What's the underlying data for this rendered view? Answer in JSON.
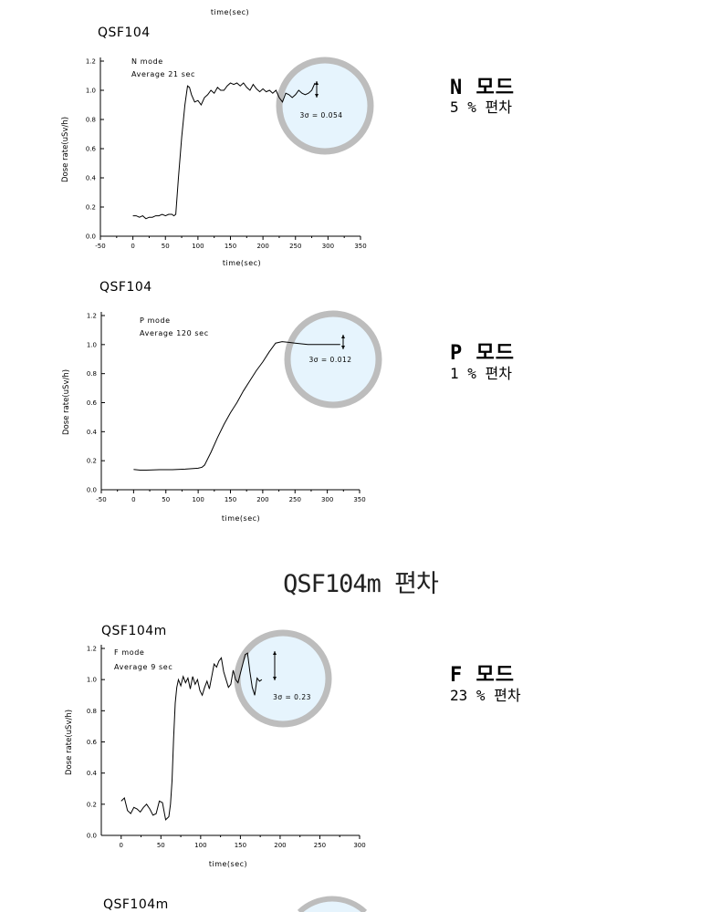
{
  "header_fragment": "time(sec)",
  "section_title": "QSF104m 편차",
  "side_labels": [
    {
      "mode": "N 모드",
      "deviation": "5 % 편차"
    },
    {
      "mode": "P 모드",
      "deviation": "1 % 편차"
    },
    {
      "mode": "F 모드",
      "deviation": "23 % 편차"
    }
  ],
  "chart_data": [
    {
      "type": "line",
      "title": "QSF104",
      "xlabel": "time(sec)",
      "ylabel": "Dose rate(uSv/h)",
      "xlim": [
        -50,
        350
      ],
      "ylim": [
        0.0,
        1.2
      ],
      "xticks": [
        -50,
        0,
        50,
        100,
        150,
        200,
        250,
        300,
        350
      ],
      "yticks": [
        0.0,
        0.2,
        0.4,
        0.6,
        0.8,
        1.0,
        1.2
      ],
      "annotation_lines": [
        "N mode",
        "Average 21 sec"
      ],
      "sigma_label": "3σ = 0.054",
      "x": [
        0,
        5,
        10,
        15,
        20,
        25,
        30,
        35,
        40,
        45,
        50,
        55,
        60,
        63,
        66,
        70,
        75,
        80,
        84,
        87,
        90,
        95,
        100,
        105,
        110,
        115,
        120,
        125,
        130,
        135,
        140,
        145,
        150,
        155,
        160,
        165,
        170,
        175,
        180,
        185,
        190,
        195,
        200,
        205,
        210,
        215,
        220,
        225,
        230,
        235,
        240,
        245,
        250,
        255,
        260,
        265,
        270,
        275,
        280
      ],
      "values": [
        0.14,
        0.14,
        0.13,
        0.14,
        0.12,
        0.13,
        0.13,
        0.14,
        0.14,
        0.15,
        0.14,
        0.15,
        0.15,
        0.14,
        0.15,
        0.4,
        0.68,
        0.9,
        1.03,
        1.02,
        0.97,
        0.92,
        0.93,
        0.9,
        0.95,
        0.97,
        1.0,
        0.98,
        1.02,
        1.0,
        1.0,
        1.03,
        1.05,
        1.04,
        1.05,
        1.03,
        1.05,
        1.02,
        1.0,
        1.04,
        1.01,
        0.99,
        1.01,
        0.99,
        1.0,
        0.98,
        1.0,
        0.95,
        0.92,
        0.98,
        0.97,
        0.95,
        0.97,
        1.0,
        0.98,
        0.97,
        0.98,
        1.0,
        1.05
      ]
    },
    {
      "type": "line",
      "title": "QSF104",
      "xlabel": "time(sec)",
      "ylabel": "Dose rate(uSv/h)",
      "xlim": [
        -50,
        350
      ],
      "ylim": [
        0.0,
        1.2
      ],
      "xticks": [
        -50,
        0,
        50,
        100,
        150,
        200,
        250,
        300,
        350
      ],
      "yticks": [
        0.0,
        0.2,
        0.4,
        0.6,
        0.8,
        1.0,
        1.2
      ],
      "annotation_lines": [
        "P mode",
        "Average 120 sec"
      ],
      "sigma_label": "3σ = 0.012",
      "x": [
        0,
        10,
        20,
        40,
        60,
        80,
        100,
        106,
        110,
        120,
        130,
        140,
        150,
        160,
        170,
        180,
        190,
        200,
        210,
        220,
        230,
        240,
        250,
        260,
        270,
        280,
        290,
        300,
        310,
        320
      ],
      "values": [
        0.14,
        0.135,
        0.135,
        0.138,
        0.138,
        0.142,
        0.148,
        0.155,
        0.17,
        0.26,
        0.36,
        0.45,
        0.53,
        0.6,
        0.68,
        0.75,
        0.82,
        0.88,
        0.95,
        1.01,
        1.02,
        1.015,
        1.01,
        1.005,
        1.0,
        1.0,
        1.0,
        1.0,
        1.0,
        1.0
      ]
    },
    {
      "type": "line",
      "title": "QSF104m",
      "xlabel": "time(sec)",
      "ylabel": "Dose rate(uSv/h)",
      "xlim": [
        -25,
        300
      ],
      "ylim": [
        0.0,
        1.2
      ],
      "xticks": [
        0,
        50,
        100,
        150,
        200,
        250,
        300
      ],
      "yticks": [
        0.0,
        0.2,
        0.4,
        0.6,
        0.8,
        1.0,
        1.2
      ],
      "annotation_lines": [
        "F mode",
        "Average 9 sec"
      ],
      "sigma_label": "3σ = 0.23",
      "x": [
        0,
        4,
        8,
        12,
        16,
        20,
        24,
        28,
        32,
        36,
        40,
        44,
        48,
        52,
        56,
        60,
        62,
        64,
        66,
        68,
        70,
        72,
        75,
        78,
        81,
        84,
        87,
        90,
        93,
        96,
        99,
        102,
        105,
        108,
        111,
        114,
        117,
        120,
        123,
        126,
        129,
        132,
        135,
        138,
        141,
        144,
        147,
        150,
        153,
        156,
        159,
        162,
        165,
        168,
        171,
        174,
        177
      ],
      "values": [
        0.22,
        0.24,
        0.16,
        0.14,
        0.18,
        0.17,
        0.15,
        0.18,
        0.2,
        0.17,
        0.13,
        0.14,
        0.22,
        0.21,
        0.1,
        0.12,
        0.2,
        0.35,
        0.62,
        0.85,
        0.95,
        1.0,
        0.96,
        1.02,
        0.98,
        1.01,
        0.94,
        1.02,
        0.97,
        1.0,
        0.93,
        0.9,
        0.95,
        0.99,
        0.94,
        1.02,
        1.1,
        1.08,
        1.12,
        1.14,
        1.05,
        1.0,
        0.95,
        0.97,
        1.06,
        1.0,
        0.98,
        1.04,
        1.1,
        1.16,
        1.17,
        1.05,
        0.95,
        0.9,
        1.01,
        0.99,
        1.0
      ]
    },
    {
      "type": "line",
      "title": "QSF104m"
    }
  ]
}
